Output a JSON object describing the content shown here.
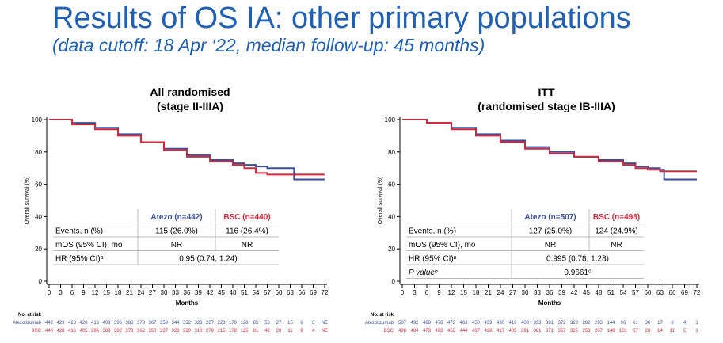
{
  "header": {
    "title": "Results of OS IA: other primary populations",
    "subtitle": "(data cutoff: 18 Apr ‘22, median follow-up: 45 months)"
  },
  "colors": {
    "atezo": "#3a4f9c",
    "bsc": "#d6263a",
    "title": "#1f5fb4"
  },
  "chart_data": [
    {
      "type": "line",
      "title": [
        "All randomised",
        "(stage II-IIIA)"
      ],
      "xlabel": "Months",
      "ylabel": "Overall survival (%)",
      "xlim": [
        0,
        72
      ],
      "ylim": [
        0,
        100
      ],
      "xticks": [
        0,
        3,
        6,
        9,
        12,
        15,
        18,
        21,
        24,
        27,
        30,
        33,
        36,
        39,
        42,
        45,
        48,
        51,
        54,
        57,
        60,
        63,
        66,
        69,
        72
      ],
      "yticks": [
        0,
        20,
        40,
        60,
        80,
        100
      ],
      "series": [
        {
          "name": "Atezolizumab",
          "x": [
            0,
            6,
            12,
            18,
            24,
            30,
            36,
            42,
            48,
            51,
            54,
            57,
            60,
            63,
            64,
            66,
            72
          ],
          "y": [
            100,
            98,
            95,
            91,
            86,
            82,
            78,
            75,
            73,
            72,
            71,
            70,
            70,
            70,
            63,
            63,
            63
          ]
        },
        {
          "name": "BSC",
          "x": [
            0,
            6,
            12,
            18,
            24,
            30,
            36,
            42,
            48,
            51,
            54,
            57,
            60,
            66,
            72
          ],
          "y": [
            100,
            97,
            94,
            90,
            86,
            81,
            77,
            74,
            72,
            70,
            67,
            66,
            66,
            66,
            66
          ]
        }
      ],
      "table": {
        "headers": [
          "",
          "Atezo (n=442)",
          "BSC (n=440)"
        ],
        "rows": [
          [
            "Events, n (%)",
            "115  (26.0%)",
            "116  (26.4%)"
          ],
          [
            "mOS (95% CI), mo",
            "NR",
            "NR"
          ],
          [
            "HR (95% CI)ᵃ",
            "0.95 (0.74, 1.24)"
          ]
        ]
      },
      "at_risk": {
        "label": "No. at risk",
        "rows": [
          {
            "name": "Atezolizumab",
            "values": [
              "442",
              "429",
              "428",
              "420",
              "416",
              "408",
              "396",
              "386",
              "378",
              "367",
              "359",
              "344",
              "332",
              "323",
              "287",
              "228",
              "179",
              "128",
              "85",
              "56",
              "27",
              "15",
              "6",
              "3",
              "NE"
            ]
          },
          {
            "name": "BSC",
            "values": [
              "440",
              "428",
              "416",
              "405",
              "396",
              "389",
              "382",
              "373",
              "362",
              "350",
              "337",
              "328",
              "320",
              "310",
              "279",
              "215",
              "178",
              "125",
              "81",
              "42",
              "20",
              "11",
              "9",
              "4",
              "NE"
            ]
          }
        ]
      }
    },
    {
      "type": "line",
      "title": [
        "ITT",
        "(randomised stage IB-IIIA)"
      ],
      "xlabel": "Months",
      "ylabel": "Overall survival (%)",
      "xlim": [
        0,
        72
      ],
      "ylim": [
        0,
        100
      ],
      "xticks": [
        0,
        3,
        6,
        9,
        12,
        15,
        18,
        21,
        24,
        27,
        30,
        33,
        36,
        39,
        42,
        45,
        48,
        51,
        54,
        57,
        60,
        63,
        66,
        69,
        72
      ],
      "yticks": [
        0,
        20,
        40,
        60,
        80,
        100
      ],
      "series": [
        {
          "name": "Atezolizumab",
          "x": [
            0,
            6,
            12,
            18,
            24,
            30,
            36,
            42,
            48,
            54,
            57,
            60,
            63,
            64,
            66,
            72
          ],
          "y": [
            100,
            98,
            95,
            91,
            87,
            83,
            80,
            77,
            75,
            73,
            71,
            70,
            69,
            63,
            63,
            63
          ]
        },
        {
          "name": "BSC",
          "x": [
            0,
            6,
            12,
            18,
            24,
            30,
            36,
            42,
            48,
            54,
            57,
            60,
            63,
            66,
            72
          ],
          "y": [
            100,
            98,
            94,
            90,
            86,
            82,
            79,
            77,
            74,
            72,
            70,
            69,
            68,
            68,
            68
          ]
        }
      ],
      "table": {
        "headers": [
          "",
          "Atezo (n=507)",
          "BSC (n=498)"
        ],
        "rows": [
          [
            "Events, n (%)",
            "127 (25.0%)",
            "124 (24.9%)"
          ],
          [
            "mOS (95% CI), mo",
            "NR",
            "NR"
          ],
          [
            "HR (95% CI)ᵃ",
            "0.995 (0.78, 1.28)"
          ],
          [
            "P valueᵇ",
            "0.9661ᶜ"
          ]
        ]
      },
      "at_risk": {
        "label": "No. at risk",
        "rows": [
          {
            "name": "Atezolizumab",
            "values": [
              "507",
              "492",
              "488",
              "478",
              "472",
              "463",
              "450",
              "439",
              "430",
              "419",
              "408",
              "393",
              "381",
              "372",
              "328",
              "282",
              "203",
              "144",
              "96",
              "61",
              "30",
              "17",
              "8",
              "4",
              "1"
            ]
          },
          {
            "name": "BSC",
            "values": [
              "498",
              "484",
              "473",
              "462",
              "452",
              "444",
              "437",
              "428",
              "417",
              "405",
              "391",
              "381",
              "371",
              "357",
              "325",
              "253",
              "207",
              "148",
              "101",
              "57",
              "28",
              "14",
              "11",
              "5",
              "1"
            ]
          }
        ]
      }
    }
  ]
}
